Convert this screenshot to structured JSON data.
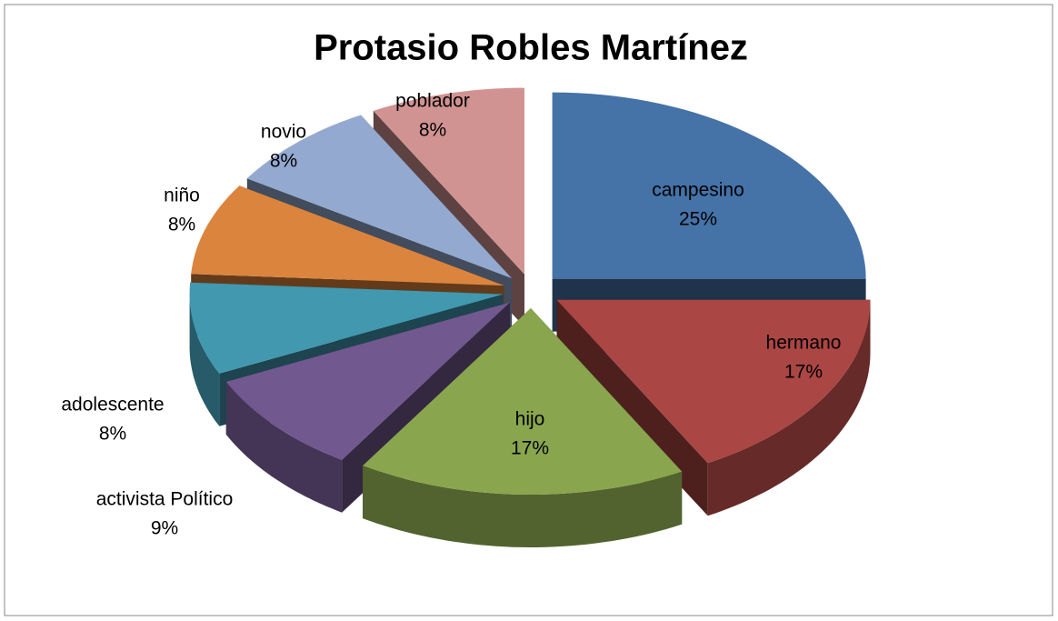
{
  "chart_data": {
    "type": "pie",
    "title": "Protasio Robles Martínez",
    "categories": [
      "campesino",
      "hermano",
      "hijo",
      "activista Político",
      "adolescente",
      "niño",
      "novio",
      "poblador"
    ],
    "values": [
      25,
      17,
      17,
      9,
      8,
      8,
      8,
      8
    ],
    "value_labels": [
      "25%",
      "17%",
      "17%",
      "9%",
      "8%",
      "8%",
      "8%",
      "8%"
    ],
    "colors": [
      "#4572a7",
      "#aa4643",
      "#89a54e",
      "#71588f",
      "#4198af",
      "#db843d",
      "#93a9cf",
      "#d19392"
    ]
  }
}
